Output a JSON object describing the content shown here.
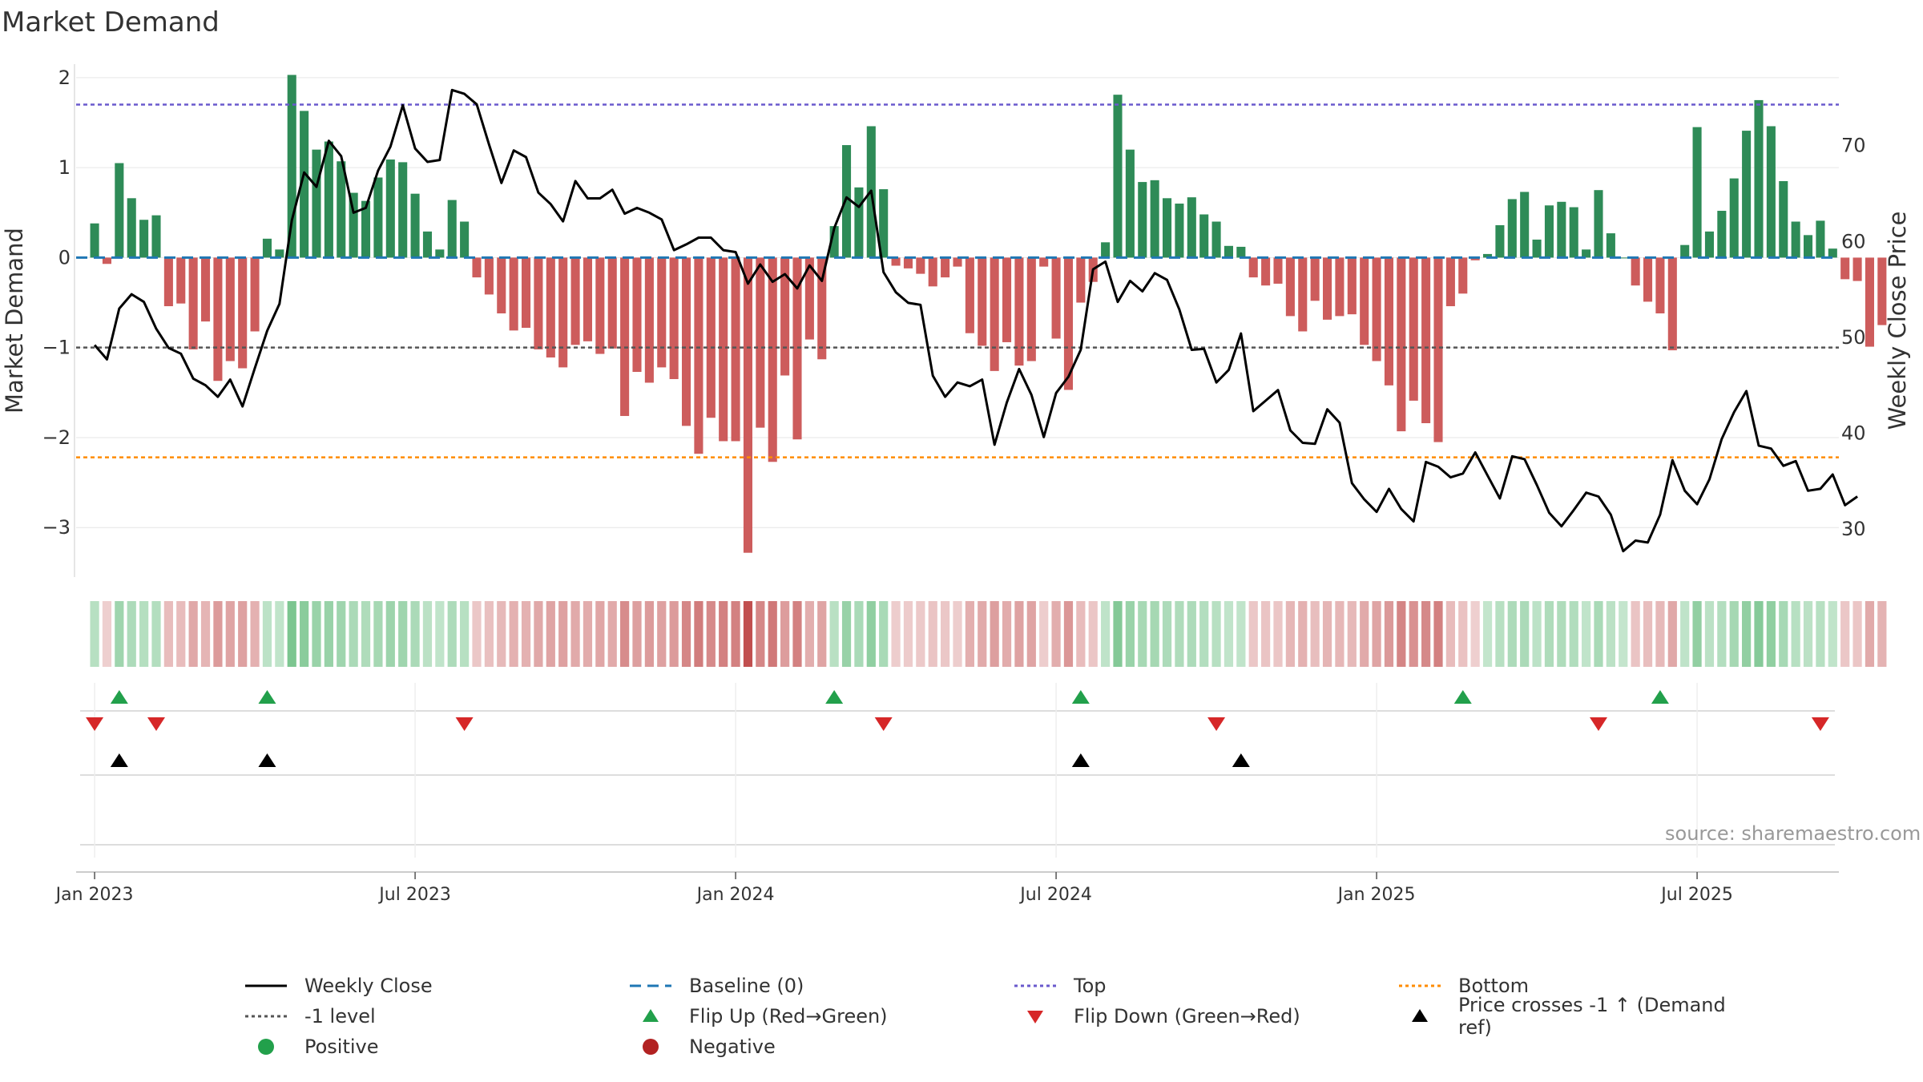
{
  "title": "Market Demand",
  "source_text": "source: sharemaestro.com",
  "colors": {
    "positive": "#2e8b57",
    "negative": "#cd5c5c",
    "line": "#000000",
    "baseline": "#1f77b4",
    "top": "#6a5acd",
    "bottom": "#ff8c00",
    "level": "#555555",
    "flip_up": "#22a04b",
    "flip_down": "#d62728",
    "grid": "#e6e6e6",
    "axis_text": "#333333"
  },
  "chart_data": {
    "type": "bar",
    "title": "Market Demand",
    "ylabel": "Market Demand",
    "y2label": "Weekly Close Price",
    "ylim": [
      -3.55,
      2.15
    ],
    "y2lim": [
      25,
      78.5
    ],
    "yticks": [
      2,
      1,
      0,
      -1,
      -2,
      -3
    ],
    "ytick_labels": [
      "2",
      "1",
      "0",
      "−1",
      "−2",
      "−3"
    ],
    "y2ticks": [
      70,
      60,
      50,
      40,
      30
    ],
    "xlim": [
      -1.5,
      141.5
    ],
    "xticks": [
      {
        "x": 0,
        "label": "Jan 2023"
      },
      {
        "x": 26,
        "label": "Jul 2023"
      },
      {
        "x": 52,
        "label": "Jan 2024"
      },
      {
        "x": 78,
        "label": "Jul 2024"
      },
      {
        "x": 104,
        "label": "Jan 2025"
      },
      {
        "x": 130,
        "label": "Jul 2025"
      }
    ],
    "levels": {
      "top": 1.7,
      "minus_one": -1.0,
      "bottom": -2.22,
      "baseline": 0
    },
    "series": [
      {
        "name": "Market Demand",
        "values": [
          0.38,
          -0.07,
          1.05,
          0.66,
          0.42,
          0.47,
          -0.54,
          -0.51,
          -1.02,
          -0.71,
          -1.37,
          -1.15,
          -1.23,
          -0.82,
          0.21,
          0.09,
          2.03,
          1.63,
          1.2,
          1.29,
          1.07,
          0.72,
          0.63,
          0.89,
          1.09,
          1.06,
          0.71,
          0.29,
          0.09,
          0.64,
          0.4,
          -0.22,
          -0.41,
          -0.62,
          -0.81,
          -0.78,
          -1.02,
          -1.11,
          -1.22,
          -0.97,
          -0.93,
          -1.07,
          -1.01,
          -1.76,
          -1.27,
          -1.39,
          -1.22,
          -1.35,
          -1.87,
          -2.18,
          -1.78,
          -2.04,
          -2.04,
          -3.28,
          -1.89,
          -2.27,
          -1.31,
          -2.02,
          -0.91,
          -1.13,
          0.35,
          1.25,
          0.78,
          1.46,
          0.76,
          -0.09,
          -0.12,
          -0.18,
          -0.32,
          -0.22,
          -0.1,
          -0.84,
          -0.98,
          -1.26,
          -0.94,
          -1.2,
          -1.15,
          -0.1,
          -0.9,
          -1.47,
          -0.5,
          -0.27,
          0.17,
          1.81,
          1.2,
          0.84,
          0.86,
          0.66,
          0.6,
          0.67,
          0.48,
          0.4,
          0.13,
          0.12,
          -0.22,
          -0.31,
          -0.29,
          -0.65,
          -0.82,
          -0.48,
          -0.69,
          -0.65,
          -0.63,
          -0.97,
          -1.15,
          -1.42,
          -1.93,
          -1.59,
          -1.84,
          -2.05,
          -0.54,
          -0.4,
          -0.03,
          0.04,
          0.36,
          0.65,
          0.73,
          0.2,
          0.58,
          0.62,
          0.56,
          0.09,
          0.75,
          0.27,
          0.0,
          -0.31,
          -0.49,
          -0.62,
          -1.03,
          0.14,
          1.45,
          0.29,
          0.52,
          0.88,
          1.41,
          1.75,
          1.46,
          0.85,
          0.4,
          0.25,
          0.41,
          0.1,
          -0.24,
          -0.26,
          -0.99,
          -0.75
        ]
      },
      {
        "name": "Weekly Close",
        "values": [
          49.2,
          47.7,
          53.0,
          54.5,
          53.7,
          50.9,
          48.9,
          48.3,
          45.7,
          45.0,
          43.8,
          45.6,
          42.8,
          46.8,
          50.7,
          53.5,
          62.2,
          67.2,
          65.7,
          70.5,
          68.9,
          63.0,
          63.5,
          67.4,
          69.9,
          74.2,
          69.7,
          68.3,
          68.5,
          75.8,
          75.4,
          74.3,
          70.1,
          66.1,
          69.5,
          68.8,
          65.1,
          63.9,
          62.1,
          66.3,
          64.5,
          64.5,
          65.4,
          62.9,
          63.5,
          63.0,
          62.3,
          59.1,
          59.7,
          60.4,
          60.4,
          59.1,
          58.9,
          55.6,
          57.6,
          55.8,
          56.6,
          55.1,
          57.5,
          55.9,
          61.4,
          64.6,
          63.6,
          65.3,
          56.8,
          54.7,
          53.6,
          53.4,
          46.0,
          43.8,
          45.3,
          44.9,
          45.6,
          38.8,
          43.2,
          46.7,
          44.0,
          39.6,
          44.2,
          45.9,
          48.7,
          57.1,
          57.9,
          53.7,
          55.9,
          54.8,
          56.7,
          56.0,
          52.9,
          48.7,
          48.8,
          45.3,
          46.6,
          50.4,
          42.3,
          43.4,
          44.5,
          40.3,
          39.0,
          38.9,
          42.5,
          41.1,
          34.8,
          33.1,
          31.8,
          34.2,
          32.1,
          30.8,
          37.0,
          36.5,
          35.4,
          35.8,
          38.0,
          35.6,
          33.2,
          37.6,
          37.3,
          34.6,
          31.7,
          30.3,
          32.0,
          33.8,
          33.4,
          31.5,
          27.7,
          28.8,
          28.6,
          31.5,
          37.2,
          34.0,
          32.6,
          35.2,
          39.4,
          42.2,
          44.4,
          38.7,
          38.4,
          36.6,
          37.1,
          34.0,
          34.2,
          35.7,
          32.5,
          33.4
        ]
      }
    ],
    "flip_up": [
      2,
      14,
      60,
      80,
      111,
      127
    ],
    "flip_down": [
      0,
      5,
      30,
      64,
      91,
      122,
      140
    ],
    "price_cross": [
      2,
      14,
      80,
      93
    ]
  },
  "legend": [
    {
      "label": "Weekly Close",
      "marker": "line"
    },
    {
      "label": "Baseline (0)",
      "marker": "dash-baseline"
    },
    {
      "label": "Top",
      "marker": "dot-top"
    },
    {
      "label": "Bottom",
      "marker": "dot-bottom"
    },
    {
      "label": "-1 level",
      "marker": "dot-level"
    },
    {
      "label": "Flip Up (Red→Green)",
      "marker": "tri-up"
    },
    {
      "label": "Flip Down (Green→Red)",
      "marker": "tri-down"
    },
    {
      "label": "Price crosses -1 ↑ (Demand ref)",
      "marker": "tri-up-black"
    },
    {
      "label": "Positive",
      "marker": "dot-green"
    },
    {
      "label": "Negative",
      "marker": "dot-red"
    }
  ]
}
